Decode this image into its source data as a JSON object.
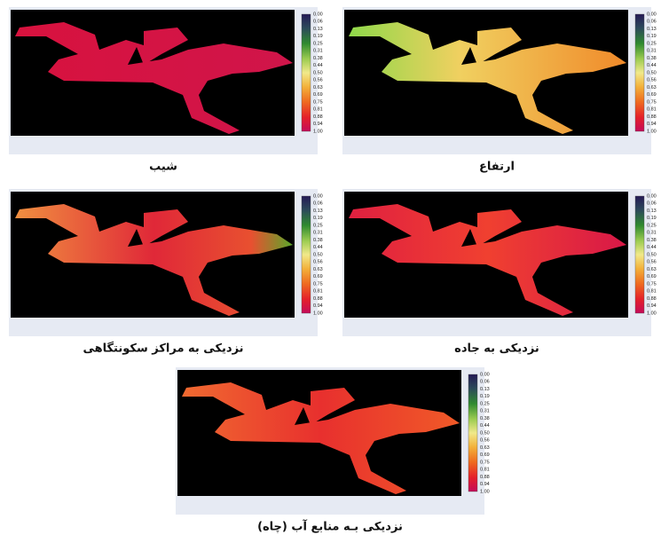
{
  "panels": [
    {
      "caption": "شیب",
      "legend_labels": [
        "0.00",
        "0.06",
        "0.13",
        "0.19",
        "0.25",
        "0.31",
        "0.38",
        "0.44",
        "0.50",
        "0.56",
        "0.63",
        "0.69",
        "0.75",
        "0.81",
        "0.88",
        "0.94",
        "1.00"
      ]
    },
    {
      "caption": "ارتفاع",
      "legend_labels": [
        "0.00",
        "0.06",
        "0.13",
        "0.19",
        "0.25",
        "0.31",
        "0.38",
        "0.44",
        "0.50",
        "0.56",
        "0.63",
        "0.69",
        "0.75",
        "0.81",
        "0.88",
        "0.94",
        "1.00"
      ]
    },
    {
      "caption": "نزدیکی به مراکز سکونتگاهی",
      "legend_labels": [
        "0.00",
        "0.06",
        "0.13",
        "0.19",
        "0.25",
        "0.31",
        "0.38",
        "0.44",
        "0.50",
        "0.56",
        "0.63",
        "0.69",
        "0.75",
        "0.81",
        "0.88",
        "0.94",
        "1.00"
      ]
    },
    {
      "caption": "نزدیکی به جاده",
      "legend_labels": [
        "0.00",
        "0.06",
        "0.13",
        "0.19",
        "0.25",
        "0.31",
        "0.38",
        "0.44",
        "0.50",
        "0.56",
        "0.63",
        "0.69",
        "0.75",
        "0.81",
        "0.88",
        "0.94",
        "1.00"
      ]
    },
    {
      "caption": "نزدیکی بـه منابع آب (چاه)",
      "legend_labels": [
        "0.00",
        "0.06",
        "0.13",
        "0.19",
        "0.25",
        "0.31",
        "0.38",
        "0.44",
        "0.50",
        "0.56",
        "0.63",
        "0.69",
        "0.75",
        "0.81",
        "0.88",
        "0.94",
        "1.00"
      ]
    }
  ]
}
